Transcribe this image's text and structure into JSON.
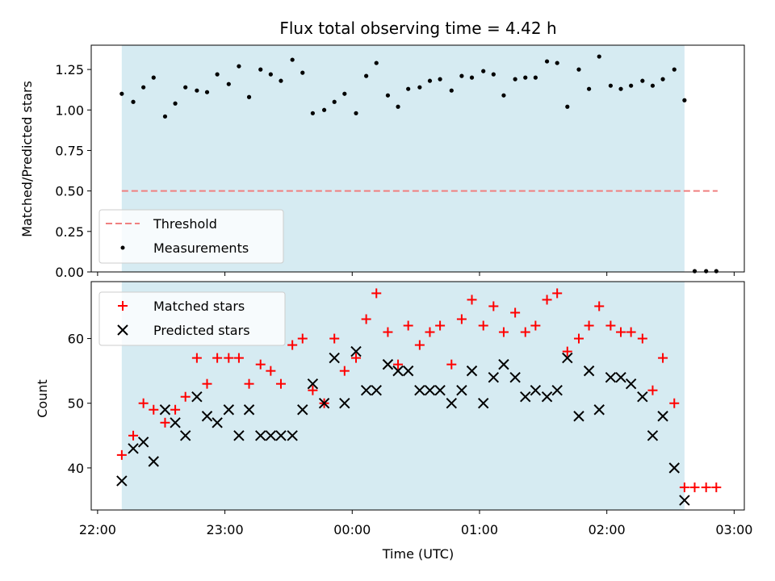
{
  "chart_data": {
    "type": "scatter",
    "title": "Flux total observing time = 4.42 h",
    "xlabel": "Time (UTC)",
    "x_ticks": [
      "22:00",
      "23:00",
      "00:00",
      "01:00",
      "02:00",
      "03:00"
    ],
    "x_range_hours": [
      21.95,
      27.08
    ],
    "observing_window_hours": [
      22.19,
      26.61
    ],
    "colors": {
      "window": "#add8e6",
      "threshold": "#f08080",
      "measurements": "#000000",
      "matched": "#ff0000",
      "predicted": "#000000"
    },
    "top": {
      "ylabel": "Matched/Predicted stars",
      "ylim": [
        0,
        1.4
      ],
      "y_ticks": [
        "0.00",
        "0.25",
        "0.50",
        "0.75",
        "1.00",
        "1.25"
      ],
      "legend": {
        "placement": "lower-left",
        "threshold": "Threshold",
        "measurements": "Measurements"
      },
      "threshold": {
        "value": 0.5,
        "x_start": 22.19,
        "x_end": 26.87
      },
      "measurements": {
        "x": [
          22.19,
          22.28,
          22.36,
          22.44,
          22.53,
          22.61,
          22.69,
          22.78,
          22.86,
          22.94,
          23.03,
          23.11,
          23.19,
          23.28,
          23.36,
          23.44,
          23.53,
          23.61,
          23.69,
          23.78,
          23.86,
          23.94,
          24.03,
          24.11,
          24.19,
          24.28,
          24.36,
          24.44,
          24.53,
          24.61,
          24.69,
          24.78,
          24.86,
          24.94,
          25.03,
          25.11,
          25.19,
          25.28,
          25.36,
          25.44,
          25.53,
          25.61,
          25.69,
          25.78,
          25.86,
          25.94,
          26.03,
          26.11,
          26.19,
          26.28,
          26.36,
          26.44,
          26.53,
          26.61,
          26.69,
          26.78,
          26.86
        ],
        "y": [
          1.1,
          1.05,
          1.14,
          1.2,
          0.96,
          1.04,
          1.14,
          1.12,
          1.11,
          1.22,
          1.16,
          1.27,
          1.08,
          1.25,
          1.22,
          1.18,
          1.31,
          1.23,
          0.98,
          1.0,
          1.05,
          1.1,
          0.98,
          1.21,
          1.29,
          1.09,
          1.02,
          1.13,
          1.14,
          1.18,
          1.19,
          1.12,
          1.21,
          1.2,
          1.24,
          1.22,
          1.09,
          1.19,
          1.2,
          1.2,
          1.3,
          1.29,
          1.02,
          1.25,
          1.13,
          1.33,
          1.15,
          1.13,
          1.15,
          1.18,
          1.15,
          1.19,
          1.25,
          1.06,
          0.0,
          0.0,
          0.0
        ]
      }
    },
    "bottom": {
      "ylabel": "Count",
      "ylim": [
        33.5,
        68.8
      ],
      "y_ticks": [
        "40",
        "50",
        "60"
      ],
      "legend": {
        "placement": "upper-left"
      },
      "series": [
        {
          "name": "Matched stars",
          "marker": "plus",
          "x": [
            22.19,
            22.28,
            22.36,
            22.44,
            22.53,
            22.61,
            22.69,
            22.78,
            22.86,
            22.94,
            23.03,
            23.11,
            23.19,
            23.28,
            23.36,
            23.44,
            23.53,
            23.61,
            23.69,
            23.78,
            23.86,
            23.94,
            24.03,
            24.11,
            24.19,
            24.28,
            24.36,
            24.44,
            24.53,
            24.61,
            24.69,
            24.78,
            24.86,
            24.94,
            25.03,
            25.11,
            25.19,
            25.28,
            25.36,
            25.44,
            25.53,
            25.61,
            25.69,
            25.78,
            25.86,
            25.94,
            26.03,
            26.11,
            26.19,
            26.28,
            26.36,
            26.44,
            26.53,
            26.61,
            26.69,
            26.78,
            26.86
          ],
          "y": [
            42,
            45,
            50,
            49,
            47,
            49,
            51,
            57,
            53,
            57,
            57,
            57,
            53,
            56,
            55,
            53,
            59,
            60,
            52,
            50,
            60,
            55,
            57,
            63,
            67,
            61,
            56,
            62,
            59,
            61,
            62,
            56,
            63,
            66,
            62,
            65,
            61,
            64,
            61,
            62,
            66,
            67,
            58,
            60,
            62,
            65,
            62,
            61,
            61,
            60,
            52,
            57,
            50,
            37,
            37,
            37,
            37
          ]
        },
        {
          "name": "Predicted stars",
          "marker": "x",
          "x": [
            22.19,
            22.28,
            22.36,
            22.44,
            22.53,
            22.61,
            22.69,
            22.78,
            22.86,
            22.94,
            23.03,
            23.11,
            23.19,
            23.28,
            23.36,
            23.44,
            23.53,
            23.61,
            23.69,
            23.78,
            23.86,
            23.94,
            24.03,
            24.11,
            24.19,
            24.28,
            24.36,
            24.44,
            24.53,
            24.61,
            24.69,
            24.78,
            24.86,
            24.94,
            25.03,
            25.11,
            25.19,
            25.28,
            25.36,
            25.44,
            25.53,
            25.61,
            25.69,
            25.78,
            25.86,
            25.94,
            26.03,
            26.11,
            26.19,
            26.28,
            26.36,
            26.44,
            26.53,
            26.61
          ],
          "y": [
            38,
            43,
            44,
            41,
            49,
            47,
            45,
            51,
            48,
            47,
            49,
            45,
            49,
            45,
            45,
            45,
            45,
            49,
            53,
            50,
            57,
            50,
            58,
            52,
            52,
            56,
            55,
            55,
            52,
            52,
            52,
            50,
            52,
            55,
            50,
            54,
            56,
            54,
            51,
            52,
            51,
            52,
            57,
            48,
            55,
            49,
            54,
            54,
            53,
            51,
            45,
            48,
            40,
            35
          ]
        }
      ]
    }
  }
}
